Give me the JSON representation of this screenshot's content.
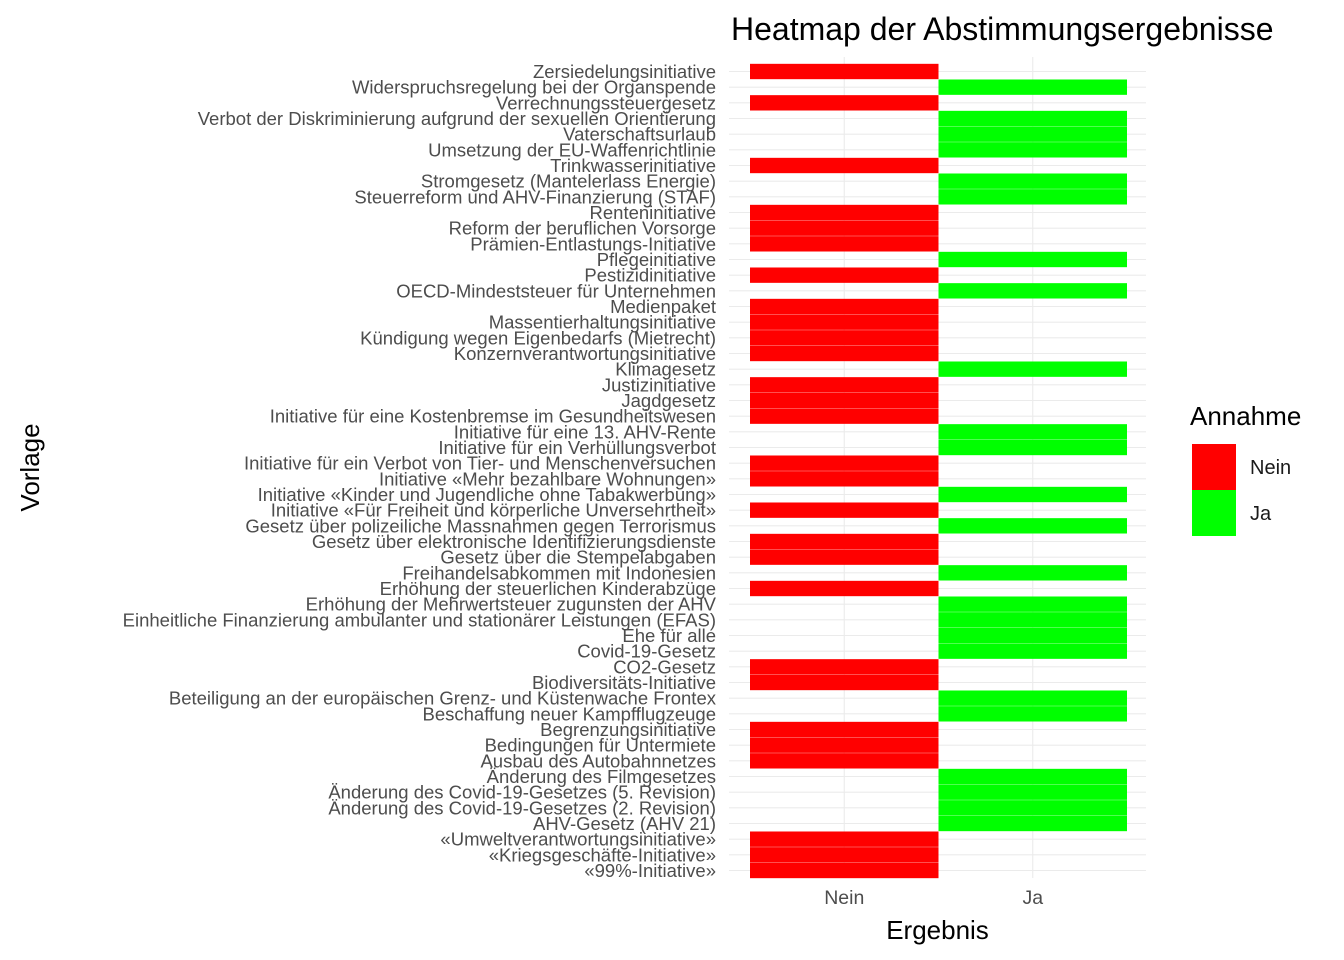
{
  "chart_data": {
    "type": "heatmap",
    "title": "Heatmap der Abstimmungsergebnisse",
    "xlabel": "Ergebnis",
    "ylabel": "Vorlage",
    "x_categories": [
      "Nein",
      "Ja"
    ],
    "legend": {
      "title": "Annahme",
      "position": "right",
      "entries": [
        {
          "label": "Nein",
          "color": "#ff0000"
        },
        {
          "label": "Ja",
          "color": "#00ff00"
        }
      ]
    },
    "grid": true,
    "rows": [
      {
        "label": "Zersiedelungsinitiative",
        "result": "Nein"
      },
      {
        "label": "Widerspruchsregelung bei der Organspende",
        "result": "Ja"
      },
      {
        "label": "Verrechnungssteuergesetz",
        "result": "Nein"
      },
      {
        "label": "Verbot der Diskriminierung aufgrund der sexuellen Orientierung",
        "result": "Ja"
      },
      {
        "label": "Vaterschaftsurlaub",
        "result": "Ja"
      },
      {
        "label": "Umsetzung der EU-Waffenrichtlinie",
        "result": "Ja"
      },
      {
        "label": "Trinkwasserinitiative",
        "result": "Nein"
      },
      {
        "label": "Stromgesetz (Mantelerlass Energie)",
        "result": "Ja"
      },
      {
        "label": "Steuerreform und AHV-Finanzierung (STAF)",
        "result": "Ja"
      },
      {
        "label": "Renteninitiative",
        "result": "Nein"
      },
      {
        "label": "Reform der beruflichen Vorsorge",
        "result": "Nein"
      },
      {
        "label": "Prämien-Entlastungs-Initiative",
        "result": "Nein"
      },
      {
        "label": "Pflegeinitiative",
        "result": "Ja"
      },
      {
        "label": "Pestizidinitiative",
        "result": "Nein"
      },
      {
        "label": "OECD-Mindeststeuer für Unternehmen",
        "result": "Ja"
      },
      {
        "label": "Medienpaket",
        "result": "Nein"
      },
      {
        "label": "Massentierhaltungsinitiative",
        "result": "Nein"
      },
      {
        "label": "Kündigung wegen Eigenbedarfs (Mietrecht)",
        "result": "Nein"
      },
      {
        "label": "Konzernverantwortungsinitiative",
        "result": "Nein"
      },
      {
        "label": "Klimagesetz",
        "result": "Ja"
      },
      {
        "label": "Justizinitiative",
        "result": "Nein"
      },
      {
        "label": "Jagdgesetz",
        "result": "Nein"
      },
      {
        "label": "Initiative für eine Kostenbremse im Gesundheitswesen",
        "result": "Nein"
      },
      {
        "label": "Initiative für eine 13. AHV-Rente",
        "result": "Ja"
      },
      {
        "label": "Initiative für ein Verhüllungsverbot",
        "result": "Ja"
      },
      {
        "label": "Initiative für ein Verbot von Tier- und Menschenversuchen",
        "result": "Nein"
      },
      {
        "label": "Initiative «Mehr bezahlbare Wohnungen»",
        "result": "Nein"
      },
      {
        "label": "Initiative «Kinder und Jugendliche ohne Tabakwerbung»",
        "result": "Ja"
      },
      {
        "label": "Initiative «Für Freiheit und körperliche Unversehrtheit»",
        "result": "Nein"
      },
      {
        "label": "Gesetz über polizeiliche Massnahmen gegen Terrorismus",
        "result": "Ja"
      },
      {
        "label": "Gesetz über elektronische Identifizierungsdienste",
        "result": "Nein"
      },
      {
        "label": "Gesetz über die Stempelabgaben",
        "result": "Nein"
      },
      {
        "label": "Freihandelsabkommen mit Indonesien",
        "result": "Ja"
      },
      {
        "label": "Erhöhung der steuerlichen Kinderabzüge",
        "result": "Nein"
      },
      {
        "label": "Erhöhung der Mehrwertsteuer zugunsten der AHV",
        "result": "Ja"
      },
      {
        "label": "Einheitliche Finanzierung ambulanter und stationärer Leistungen (EFAS)",
        "result": "Ja"
      },
      {
        "label": "Ehe für alle",
        "result": "Ja"
      },
      {
        "label": "Covid-19-Gesetz",
        "result": "Ja"
      },
      {
        "label": "CO2-Gesetz",
        "result": "Nein"
      },
      {
        "label": "Biodiversitäts-Initiative",
        "result": "Nein"
      },
      {
        "label": "Beteiligung an der europäischen Grenz- und Küstenwache Frontex",
        "result": "Ja"
      },
      {
        "label": "Beschaffung neuer Kampfflugzeuge",
        "result": "Ja"
      },
      {
        "label": "Begrenzungsinitiative",
        "result": "Nein"
      },
      {
        "label": "Bedingungen für Untermiete",
        "result": "Nein"
      },
      {
        "label": "Ausbau des Autobahnnetzes",
        "result": "Nein"
      },
      {
        "label": "Änderung des Filmgesetzes",
        "result": "Ja"
      },
      {
        "label": "Änderung des Covid-19-Gesetzes (5. Revision)",
        "result": "Ja"
      },
      {
        "label": "Änderung des Covid-19-Gesetzes (2. Revision)",
        "result": "Ja"
      },
      {
        "label": "AHV-Gesetz (AHV 21)",
        "result": "Ja"
      },
      {
        "label": "«Umweltverantwortungsinitiative»",
        "result": "Nein"
      },
      {
        "label": "«Kriegsgeschäfte-Initiative»",
        "result": "Nein"
      },
      {
        "label": "«99%-Initiative»",
        "result": "Nein"
      }
    ]
  }
}
